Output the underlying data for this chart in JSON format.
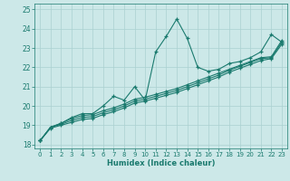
{
  "title": "",
  "xlabel": "Humidex (Indice chaleur)",
  "ylabel": "",
  "bg_color": "#cce8e8",
  "line_color": "#1a7a6e",
  "grid_color": "#aad0d0",
  "xlim": [
    -0.5,
    23.5
  ],
  "ylim": [
    17.8,
    25.3
  ],
  "yticks": [
    18,
    19,
    20,
    21,
    22,
    23,
    24,
    25
  ],
  "xticks": [
    0,
    1,
    2,
    3,
    4,
    5,
    6,
    7,
    8,
    9,
    10,
    11,
    12,
    13,
    14,
    15,
    16,
    17,
    18,
    19,
    20,
    21,
    22,
    23
  ],
  "line_peak": [
    18.2,
    18.9,
    19.1,
    19.4,
    19.6,
    19.6,
    20.0,
    20.5,
    20.3,
    21.0,
    20.3,
    22.8,
    23.6,
    24.5,
    23.5,
    22.0,
    21.8,
    21.9,
    22.2,
    22.3,
    22.5,
    22.8,
    23.7,
    23.3
  ],
  "line_a": [
    18.2,
    18.9,
    19.1,
    19.35,
    19.5,
    19.55,
    19.75,
    19.9,
    20.1,
    20.35,
    20.45,
    20.6,
    20.75,
    20.9,
    21.1,
    21.3,
    21.5,
    21.7,
    21.9,
    22.1,
    22.3,
    22.5,
    22.55,
    23.4
  ],
  "line_b": [
    18.2,
    18.9,
    19.05,
    19.25,
    19.4,
    19.45,
    19.65,
    19.8,
    20.0,
    20.25,
    20.35,
    20.5,
    20.65,
    20.8,
    21.0,
    21.2,
    21.4,
    21.6,
    21.85,
    22.05,
    22.25,
    22.45,
    22.5,
    23.3
  ],
  "line_c": [
    18.2,
    18.85,
    19.0,
    19.15,
    19.3,
    19.35,
    19.55,
    19.7,
    19.9,
    20.15,
    20.25,
    20.4,
    20.55,
    20.7,
    20.9,
    21.1,
    21.3,
    21.5,
    21.75,
    21.95,
    22.15,
    22.35,
    22.45,
    23.2
  ]
}
